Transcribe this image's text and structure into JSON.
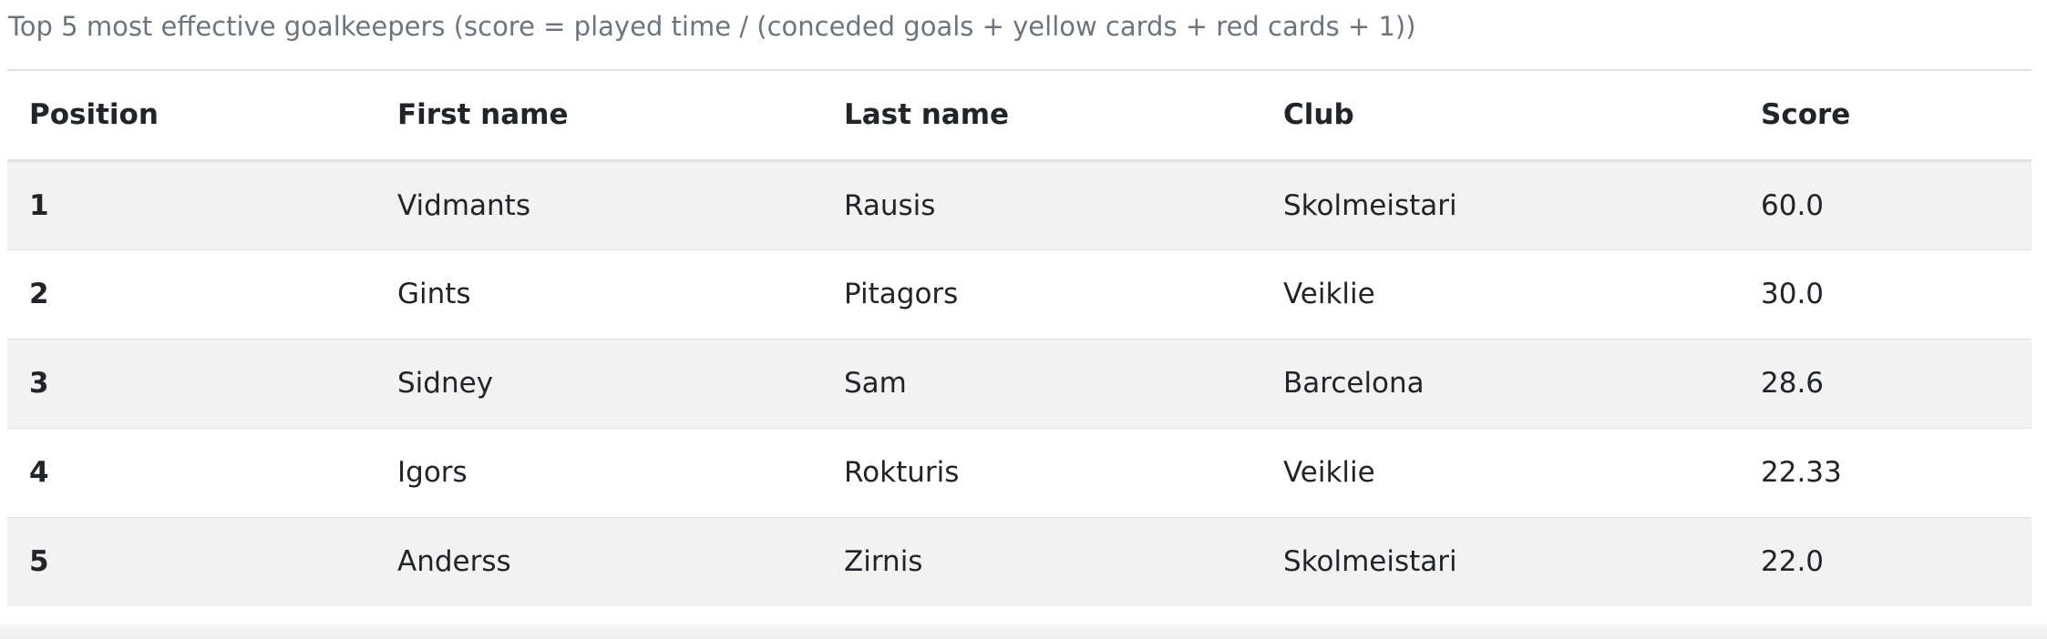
{
  "caption": "Top 5 most effective goalkeepers (score = played time / (conceded goals + yellow cards + red cards + 1))",
  "table": {
    "headers": [
      "Position",
      "First name",
      "Last name",
      "Club",
      "Score"
    ],
    "rows": [
      [
        "1",
        "Vidmants",
        "Rausis",
        "Skolmeistari",
        "60.0"
      ],
      [
        "2",
        "Gints",
        "Pitagors",
        "Veiklie",
        "30.0"
      ],
      [
        "3",
        "Sidney",
        "Sam",
        "Barcelona",
        "28.6"
      ],
      [
        "4",
        "Igors",
        "Rokturis",
        "Veiklie",
        "22.33"
      ],
      [
        "5",
        "Anderss",
        "Zirnis",
        "Skolmeistari",
        "22.0"
      ]
    ]
  },
  "colors": {
    "stripe": "#f2f2f2",
    "border": "#dee2e6",
    "caption": "#6c757d"
  }
}
